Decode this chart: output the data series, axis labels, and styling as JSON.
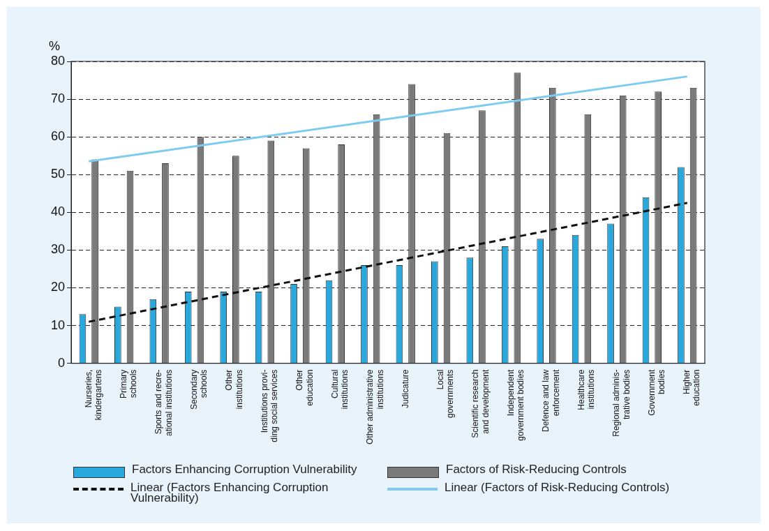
{
  "chart_data": {
    "type": "bar",
    "ylabel": "%",
    "categories": [
      "Nurseries,\nkindergartens",
      "Primary\nschools",
      "Sports and recre-\national institutions",
      "Secondary\nschools",
      "Other\ninstitutions",
      "Institutions provi-\nding social services",
      "Other\neducation",
      "Cultural\ninstitutions",
      "Other administrative\ninstitutions",
      "Judicature",
      "Local\ngovernments",
      "Scientific research\nand development",
      "Independent\ngovernment bodies",
      "Defence and law\nenforcement",
      "Healthcare\ninstitutions",
      "Regional adminis-\ntrative bodies",
      "Government\nbodies",
      "Higher\neducation"
    ],
    "series": [
      {
        "name": "Factors Enhancing Corruption Vulnerability",
        "color": "#29a8de",
        "values": [
          13,
          15,
          17,
          19,
          19,
          19,
          21,
          22,
          26,
          26,
          27,
          28,
          31,
          33,
          34,
          37,
          44,
          52
        ]
      },
      {
        "name": "Factors of Risk-Reducing Controls",
        "color": "#7a7a7a",
        "values": [
          54,
          51,
          53,
          60,
          55,
          59,
          57,
          58,
          66,
          74,
          61,
          67,
          77,
          73,
          66,
          71,
          72,
          73
        ]
      },
      {
        "name": "Linear (Factors Enhancing Corruption Vulnerability)",
        "type": "line",
        "line_style": "dashed",
        "color": "#111111",
        "x": [
          "Nurseries,\nkindergartens",
          "Higher\neducation"
        ],
        "values": [
          11,
          42.5
        ]
      },
      {
        "name": "Linear (Factors of Risk-Reducing Controls)",
        "type": "line",
        "line_style": "solid",
        "color": "#7dcbf0",
        "x": [
          "Nurseries,\nkindergartens",
          "Higher\neducation"
        ],
        "values": [
          53.5,
          76
        ]
      }
    ],
    "ylim": [
      0,
      80
    ],
    "yticks": [
      0,
      10,
      20,
      30,
      40,
      50,
      60,
      70,
      80
    ],
    "grid": "y",
    "legend": "bottom",
    "marker": "none"
  }
}
